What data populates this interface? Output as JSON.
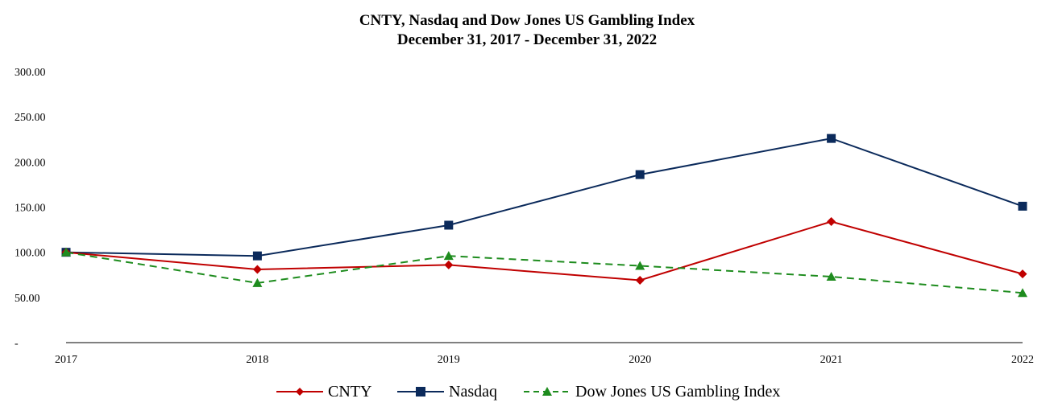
{
  "chart_data": {
    "type": "line",
    "title": "CNTY, Nasdaq and Dow Jones US Gambling Index",
    "subtitle": "December 31, 2017 - December 31, 2022",
    "categories": [
      "2017",
      "2018",
      "2019",
      "2020",
      "2021",
      "2022"
    ],
    "y_tick_labels": [
      "-",
      "50.00",
      "100.00",
      "150.00",
      "200.00",
      "250.00",
      "300.00"
    ],
    "y_ticks": [
      0,
      50,
      100,
      150,
      200,
      250,
      300
    ],
    "ylim": [
      0,
      300
    ],
    "grid": false,
    "legend_position": "bottom",
    "series": [
      {
        "name": "CNTY",
        "values": [
          100,
          81,
          86,
          69,
          134,
          76
        ],
        "color": "#c00000",
        "marker": "diamond",
        "dash": "solid"
      },
      {
        "name": "Nasdaq",
        "values": [
          100,
          96,
          130,
          186,
          226,
          151
        ],
        "color": "#0b2a5b",
        "marker": "square",
        "dash": "solid"
      },
      {
        "name": "Dow Jones US Gambling Index",
        "values": [
          100,
          66,
          96,
          85,
          73,
          55
        ],
        "color": "#1e8c1e",
        "marker": "triangle",
        "dash": "dashed"
      }
    ]
  }
}
